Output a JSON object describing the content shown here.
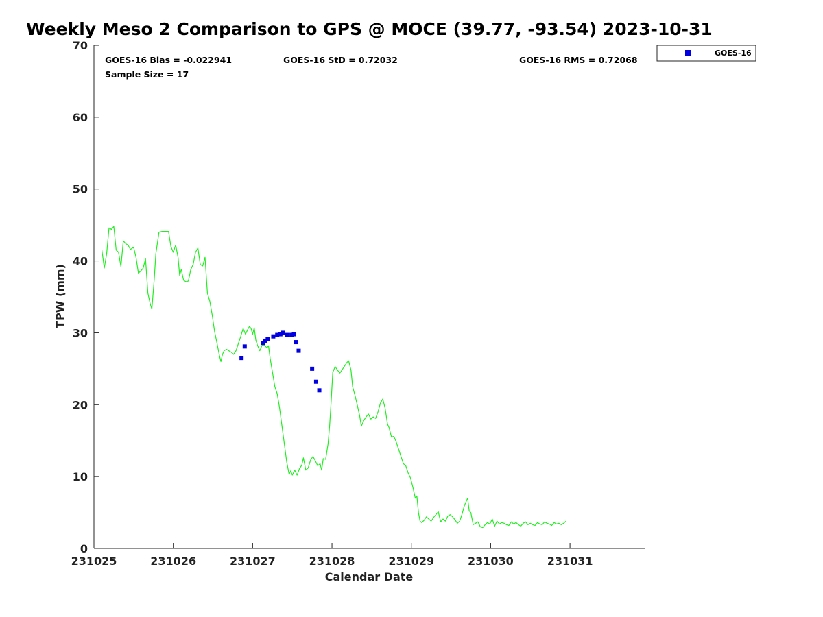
{
  "chart_data": {
    "type": "line",
    "title": "Weekly Meso 2 Comparison to GPS @ MOCE (39.77, -93.54) 2023-10-31",
    "xlabel": "Calendar Date",
    "ylabel": "TPW (mm)",
    "xlim": [
      231025.0,
      231031.95
    ],
    "ylim": [
      0,
      70
    ],
    "x_ticks": [
      231025,
      231026,
      231027,
      231028,
      231029,
      231030,
      231031
    ],
    "x_tick_labels": [
      "231025",
      "231026",
      "231027",
      "231028",
      "231029",
      "231030",
      "231031"
    ],
    "y_ticks": [
      0,
      10,
      20,
      30,
      40,
      50,
      60,
      70
    ],
    "y_tick_labels": [
      "0",
      "10",
      "20",
      "30",
      "40",
      "50",
      "60",
      "70"
    ],
    "stats": {
      "bias": "GOES-16 Bias = -0.022941",
      "std": "GOES-16 StD = 0.72032",
      "rms": "GOES-16 RMS = 0.72068",
      "sample_size": "Sample Size = 17"
    },
    "legend": {
      "position": "top-right-outside",
      "entries": [
        {
          "name": "GOES-16",
          "color": "#0000e0",
          "marker": "square"
        }
      ]
    },
    "series": [
      {
        "kind": "line",
        "color": "#22ee22",
        "points": [
          [
            0.1,
            41.5
          ],
          [
            0.13,
            39.0
          ],
          [
            0.16,
            41.0
          ],
          [
            0.19,
            44.6
          ],
          [
            0.22,
            44.4
          ],
          [
            0.25,
            44.8
          ],
          [
            0.28,
            41.5
          ],
          [
            0.31,
            41.2
          ],
          [
            0.34,
            39.2
          ],
          [
            0.37,
            42.8
          ],
          [
            0.4,
            42.4
          ],
          [
            0.43,
            42.2
          ],
          [
            0.46,
            41.6
          ],
          [
            0.5,
            41.9
          ],
          [
            0.53,
            40.5
          ],
          [
            0.56,
            38.3
          ],
          [
            0.59,
            38.6
          ],
          [
            0.62,
            39.0
          ],
          [
            0.65,
            40.3
          ],
          [
            0.68,
            35.5
          ],
          [
            0.71,
            34.0
          ],
          [
            0.73,
            33.3
          ],
          [
            0.76,
            37.5
          ],
          [
            0.78,
            41.0
          ],
          [
            0.82,
            44.0
          ],
          [
            0.86,
            44.1
          ],
          [
            0.9,
            44.1
          ],
          [
            0.94,
            44.1
          ],
          [
            0.97,
            42.0
          ],
          [
            1.0,
            41.2
          ],
          [
            1.03,
            42.2
          ],
          [
            1.06,
            40.5
          ],
          [
            1.08,
            38.0
          ],
          [
            1.1,
            38.8
          ],
          [
            1.13,
            37.3
          ],
          [
            1.16,
            37.1
          ],
          [
            1.19,
            37.2
          ],
          [
            1.22,
            38.8
          ],
          [
            1.25,
            39.5
          ],
          [
            1.28,
            41.2
          ],
          [
            1.31,
            41.8
          ],
          [
            1.34,
            39.5
          ],
          [
            1.37,
            39.3
          ],
          [
            1.4,
            40.5
          ],
          [
            1.43,
            35.5
          ],
          [
            1.46,
            34.4
          ],
          [
            1.49,
            32.5
          ],
          [
            1.52,
            30.2
          ],
          [
            1.55,
            28.6
          ],
          [
            1.58,
            26.9
          ],
          [
            1.6,
            26.0
          ],
          [
            1.62,
            27.0
          ],
          [
            1.64,
            27.5
          ],
          [
            1.67,
            27.7
          ],
          [
            1.7,
            27.5
          ],
          [
            1.73,
            27.3
          ],
          [
            1.76,
            27.0
          ],
          [
            1.79,
            27.5
          ],
          [
            1.82,
            28.5
          ],
          [
            1.85,
            29.5
          ],
          [
            1.88,
            30.6
          ],
          [
            1.91,
            29.8
          ],
          [
            1.94,
            30.5
          ],
          [
            1.96,
            30.9
          ],
          [
            1.98,
            30.6
          ],
          [
            2.0,
            29.8
          ],
          [
            2.02,
            30.7
          ],
          [
            2.04,
            29.0
          ],
          [
            2.06,
            28.3
          ],
          [
            2.09,
            27.5
          ],
          [
            2.12,
            28.3
          ],
          [
            2.15,
            28.3
          ],
          [
            2.18,
            27.9
          ],
          [
            2.2,
            28.2
          ],
          [
            2.22,
            26.5
          ],
          [
            2.25,
            24.5
          ],
          [
            2.28,
            22.5
          ],
          [
            2.31,
            21.5
          ],
          [
            2.34,
            19.5
          ],
          [
            2.37,
            17.0
          ],
          [
            2.4,
            14.5
          ],
          [
            2.43,
            12.0
          ],
          [
            2.46,
            10.3
          ],
          [
            2.48,
            10.8
          ],
          [
            2.5,
            10.2
          ],
          [
            2.53,
            10.9
          ],
          [
            2.56,
            10.2
          ],
          [
            2.59,
            11.1
          ],
          [
            2.62,
            11.6
          ],
          [
            2.64,
            12.6
          ],
          [
            2.67,
            10.9
          ],
          [
            2.7,
            11.2
          ],
          [
            2.73,
            12.3
          ],
          [
            2.76,
            12.8
          ],
          [
            2.79,
            12.2
          ],
          [
            2.82,
            11.5
          ],
          [
            2.85,
            11.8
          ],
          [
            2.87,
            10.9
          ],
          [
            2.89,
            12.5
          ],
          [
            2.92,
            12.4
          ],
          [
            2.95,
            14.5
          ],
          [
            2.97,
            17.0
          ],
          [
            2.99,
            20.5
          ],
          [
            3.01,
            24.5
          ],
          [
            3.04,
            25.3
          ],
          [
            3.07,
            24.8
          ],
          [
            3.1,
            24.4
          ],
          [
            3.13,
            24.9
          ],
          [
            3.16,
            25.4
          ],
          [
            3.19,
            25.9
          ],
          [
            3.21,
            26.1
          ],
          [
            3.24,
            24.8
          ],
          [
            3.26,
            22.5
          ],
          [
            3.29,
            21.3
          ],
          [
            3.32,
            19.9
          ],
          [
            3.35,
            18.4
          ],
          [
            3.37,
            17.0
          ],
          [
            3.4,
            17.8
          ],
          [
            3.43,
            18.3
          ],
          [
            3.46,
            18.7
          ],
          [
            3.49,
            18.0
          ],
          [
            3.52,
            18.3
          ],
          [
            3.55,
            18.1
          ],
          [
            3.58,
            19.0
          ],
          [
            3.61,
            20.2
          ],
          [
            3.64,
            20.8
          ],
          [
            3.67,
            19.5
          ],
          [
            3.7,
            17.3
          ],
          [
            3.72,
            16.8
          ],
          [
            3.75,
            15.5
          ],
          [
            3.78,
            15.6
          ],
          [
            3.81,
            14.8
          ],
          [
            3.84,
            13.8
          ],
          [
            3.87,
            12.8
          ],
          [
            3.9,
            11.8
          ],
          [
            3.93,
            11.5
          ],
          [
            3.96,
            10.5
          ],
          [
            3.99,
            9.8
          ],
          [
            4.02,
            8.5
          ],
          [
            4.05,
            7.0
          ],
          [
            4.07,
            7.3
          ],
          [
            4.09,
            5.0
          ],
          [
            4.11,
            3.8
          ],
          [
            4.13,
            3.6
          ],
          [
            4.16,
            3.9
          ],
          [
            4.19,
            4.4
          ],
          [
            4.22,
            4.1
          ],
          [
            4.25,
            3.8
          ],
          [
            4.28,
            4.3
          ],
          [
            4.31,
            4.7
          ],
          [
            4.34,
            5.1
          ],
          [
            4.37,
            3.7
          ],
          [
            4.4,
            4.1
          ],
          [
            4.43,
            3.8
          ],
          [
            4.46,
            4.5
          ],
          [
            4.49,
            4.7
          ],
          [
            4.52,
            4.4
          ],
          [
            4.55,
            4.0
          ],
          [
            4.58,
            3.5
          ],
          [
            4.61,
            3.8
          ],
          [
            4.64,
            4.8
          ],
          [
            4.67,
            6.0
          ],
          [
            4.69,
            6.5
          ],
          [
            4.71,
            7.0
          ],
          [
            4.73,
            5.2
          ],
          [
            4.75,
            5.0
          ],
          [
            4.78,
            3.3
          ],
          [
            4.81,
            3.5
          ],
          [
            4.84,
            3.7
          ],
          [
            4.87,
            3.0
          ],
          [
            4.9,
            2.9
          ],
          [
            4.93,
            3.3
          ],
          [
            4.96,
            3.6
          ],
          [
            4.99,
            3.4
          ],
          [
            5.02,
            4.1
          ],
          [
            5.05,
            3.1
          ],
          [
            5.08,
            3.8
          ],
          [
            5.11,
            3.4
          ],
          [
            5.14,
            3.6
          ],
          [
            5.17,
            3.5
          ],
          [
            5.2,
            3.3
          ],
          [
            5.23,
            3.2
          ],
          [
            5.26,
            3.7
          ],
          [
            5.29,
            3.4
          ],
          [
            5.32,
            3.6
          ],
          [
            5.35,
            3.3
          ],
          [
            5.38,
            3.1
          ],
          [
            5.41,
            3.5
          ],
          [
            5.44,
            3.7
          ],
          [
            5.47,
            3.3
          ],
          [
            5.5,
            3.5
          ],
          [
            5.53,
            3.3
          ],
          [
            5.56,
            3.2
          ],
          [
            5.59,
            3.6
          ],
          [
            5.62,
            3.4
          ],
          [
            5.65,
            3.3
          ],
          [
            5.68,
            3.7
          ],
          [
            5.71,
            3.5
          ],
          [
            5.74,
            3.4
          ],
          [
            5.77,
            3.2
          ],
          [
            5.8,
            3.6
          ],
          [
            5.83,
            3.4
          ],
          [
            5.86,
            3.5
          ],
          [
            5.89,
            3.3
          ],
          [
            5.92,
            3.5
          ],
          [
            5.95,
            3.8
          ]
        ]
      },
      {
        "name": "GOES-16",
        "kind": "scatter",
        "color": "#0000e0",
        "points": [
          [
            1.86,
            26.5
          ],
          [
            1.9,
            28.1
          ],
          [
            2.13,
            28.6
          ],
          [
            2.16,
            28.9
          ],
          [
            2.19,
            29.1
          ],
          [
            2.26,
            29.5
          ],
          [
            2.31,
            29.7
          ],
          [
            2.35,
            29.8
          ],
          [
            2.38,
            30.0
          ],
          [
            2.43,
            29.7
          ],
          [
            2.49,
            29.7
          ],
          [
            2.52,
            29.8
          ],
          [
            2.55,
            28.7
          ],
          [
            2.58,
            27.5
          ],
          [
            2.75,
            25.0
          ],
          [
            2.8,
            23.2
          ],
          [
            2.84,
            22.0
          ]
        ]
      }
    ]
  }
}
